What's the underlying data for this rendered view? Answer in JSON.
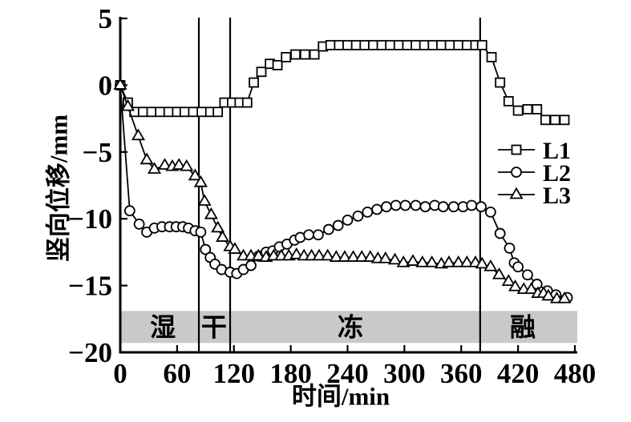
{
  "chart_data": {
    "type": "line",
    "title": "",
    "xlabel": "时间/min",
    "ylabel": "竖向位移/mm",
    "xlim": [
      0,
      480
    ],
    "ylim": [
      -20,
      5
    ],
    "xticks": [
      0,
      60,
      120,
      180,
      240,
      300,
      360,
      420,
      480
    ],
    "yticks": [
      5,
      0,
      -5,
      -10,
      -15,
      -20
    ],
    "grid": false,
    "colors": {
      "line": "#000000",
      "marker_fill": "#ffffff",
      "band": "#c9c9c9",
      "background": "#ffffff"
    },
    "legend": {
      "position": "right-middle",
      "entries": [
        {
          "label": "L1",
          "marker": "square"
        },
        {
          "label": "L2",
          "marker": "circle"
        },
        {
          "label": "L3",
          "marker": "triangle"
        }
      ]
    },
    "phases": {
      "band_mm": [
        -16.9,
        -19.3
      ],
      "boundaries_min": [
        83,
        116,
        380
      ],
      "labels": [
        {
          "text": "湿",
          "t_min": 45
        },
        {
          "text": "干",
          "t_min": 99
        },
        {
          "text": "冻",
          "t_min": 243
        },
        {
          "text": "融",
          "t_min": 425
        }
      ]
    },
    "series": [
      {
        "name": "L1",
        "marker": "square",
        "points": [
          [
            0,
            0
          ],
          [
            8,
            -1.3
          ],
          [
            15,
            -2
          ],
          [
            24,
            -2
          ],
          [
            33,
            -2
          ],
          [
            42,
            -2
          ],
          [
            51,
            -2
          ],
          [
            60,
            -2
          ],
          [
            68,
            -2
          ],
          [
            77,
            -2
          ],
          [
            86,
            -2
          ],
          [
            95,
            -2
          ],
          [
            103,
            -2
          ],
          [
            110,
            -1.3
          ],
          [
            118,
            -1.3
          ],
          [
            126,
            -1.3
          ],
          [
            134,
            -1.3
          ],
          [
            141,
            0.2
          ],
          [
            149,
            1
          ],
          [
            158,
            1.6
          ],
          [
            166,
            1.5
          ],
          [
            175,
            2.1
          ],
          [
            185,
            2.3
          ],
          [
            195,
            2.3
          ],
          [
            205,
            2.3
          ],
          [
            214,
            2.9
          ],
          [
            222,
            3
          ],
          [
            231,
            3
          ],
          [
            240,
            3
          ],
          [
            249,
            3
          ],
          [
            258,
            3
          ],
          [
            267,
            3
          ],
          [
            276,
            3
          ],
          [
            285,
            3
          ],
          [
            294,
            3
          ],
          [
            303,
            3
          ],
          [
            312,
            3
          ],
          [
            321,
            3
          ],
          [
            330,
            3
          ],
          [
            339,
            3
          ],
          [
            348,
            3
          ],
          [
            357,
            3
          ],
          [
            366,
            3
          ],
          [
            375,
            3
          ],
          [
            382,
            3
          ],
          [
            392,
            2.1
          ],
          [
            401,
            0.2
          ],
          [
            410,
            -1.2
          ],
          [
            420,
            -1.9
          ],
          [
            430,
            -1.8
          ],
          [
            440,
            -1.8
          ],
          [
            449,
            -2.6
          ],
          [
            459,
            -2.6
          ],
          [
            469,
            -2.6
          ]
        ]
      },
      {
        "name": "L2",
        "marker": "circle",
        "points": [
          [
            0,
            0
          ],
          [
            10,
            -9.4
          ],
          [
            20,
            -10.4
          ],
          [
            28,
            -11
          ],
          [
            36,
            -10.7
          ],
          [
            44,
            -10.6
          ],
          [
            52,
            -10.6
          ],
          [
            59,
            -10.6
          ],
          [
            66,
            -10.6
          ],
          [
            72,
            -10.7
          ],
          [
            79,
            -10.9
          ],
          [
            85,
            -11
          ],
          [
            90,
            -12.3
          ],
          [
            95,
            -12.9
          ],
          [
            100,
            -13.4
          ],
          [
            107,
            -13.8
          ],
          [
            116,
            -14
          ],
          [
            123,
            -14.1
          ],
          [
            130,
            -13.8
          ],
          [
            138,
            -13.5
          ],
          [
            146,
            -12.8
          ],
          [
            154,
            -12.5
          ],
          [
            161,
            -12.4
          ],
          [
            168,
            -12.1
          ],
          [
            176,
            -11.9
          ],
          [
            184,
            -11.6
          ],
          [
            190,
            -11.4
          ],
          [
            199,
            -11.2
          ],
          [
            209,
            -11.2
          ],
          [
            220,
            -10.8
          ],
          [
            230,
            -10.5
          ],
          [
            240,
            -10.1
          ],
          [
            251,
            -9.8
          ],
          [
            261,
            -9.5
          ],
          [
            271,
            -9.3
          ],
          [
            281,
            -9.1
          ],
          [
            291,
            -9
          ],
          [
            301,
            -9
          ],
          [
            312,
            -9
          ],
          [
            322,
            -9.1
          ],
          [
            332,
            -9
          ],
          [
            341,
            -9.1
          ],
          [
            352,
            -9.1
          ],
          [
            362,
            -9.1
          ],
          [
            371,
            -9
          ],
          [
            381,
            -9.1
          ],
          [
            391,
            -9.5
          ],
          [
            401,
            -11.1
          ],
          [
            411,
            -12.2
          ],
          [
            416,
            -13.3
          ],
          [
            420,
            -13.6
          ],
          [
            430,
            -14.2
          ],
          [
            440,
            -14.9
          ],
          [
            451,
            -15.4
          ],
          [
            460,
            -15.7
          ],
          [
            472,
            -15.9
          ]
        ]
      },
      {
        "name": "L3",
        "marker": "triangle",
        "points": [
          [
            0,
            0
          ],
          [
            8,
            -1.6
          ],
          [
            19,
            -3.8
          ],
          [
            28,
            -5.6
          ],
          [
            36,
            -6.3
          ],
          [
            47,
            -6
          ],
          [
            55,
            -6.1
          ],
          [
            62,
            -6
          ],
          [
            70,
            -6.1
          ],
          [
            79,
            -6.8
          ],
          [
            85,
            -7.3
          ],
          [
            89,
            -8.7
          ],
          [
            96,
            -9.7
          ],
          [
            103,
            -10.7
          ],
          [
            108,
            -11.4
          ],
          [
            116,
            -12.1
          ],
          [
            121,
            -12.3
          ],
          [
            130,
            -12.8
          ],
          [
            138,
            -12.8
          ],
          [
            146,
            -12.8
          ],
          [
            154,
            -12.9
          ],
          [
            162,
            -12.8
          ],
          [
            170,
            -12.8
          ],
          [
            178,
            -12.8
          ],
          [
            186,
            -12.7
          ],
          [
            194,
            -12.8
          ],
          [
            202,
            -12.8
          ],
          [
            210,
            -12.8
          ],
          [
            219,
            -12.8
          ],
          [
            228,
            -12.9
          ],
          [
            237,
            -12.9
          ],
          [
            246,
            -12.9
          ],
          [
            255,
            -12.9
          ],
          [
            264,
            -12.9
          ],
          [
            272,
            -13
          ],
          [
            280,
            -13
          ],
          [
            290,
            -13.1
          ],
          [
            299,
            -13.3
          ],
          [
            309,
            -13.2
          ],
          [
            319,
            -13.3
          ],
          [
            329,
            -13.3
          ],
          [
            339,
            -13.4
          ],
          [
            347,
            -13.3
          ],
          [
            357,
            -13.3
          ],
          [
            366,
            -13.3
          ],
          [
            375,
            -13.3
          ],
          [
            382,
            -13.4
          ],
          [
            391,
            -13.6
          ],
          [
            400,
            -14.2
          ],
          [
            410,
            -14.7
          ],
          [
            417,
            -15.1
          ],
          [
            426,
            -15.3
          ],
          [
            434,
            -15.3
          ],
          [
            441,
            -15.6
          ],
          [
            447,
            -15.6
          ],
          [
            452,
            -15.8
          ],
          [
            461,
            -16
          ],
          [
            469,
            -16
          ]
        ]
      }
    ]
  }
}
